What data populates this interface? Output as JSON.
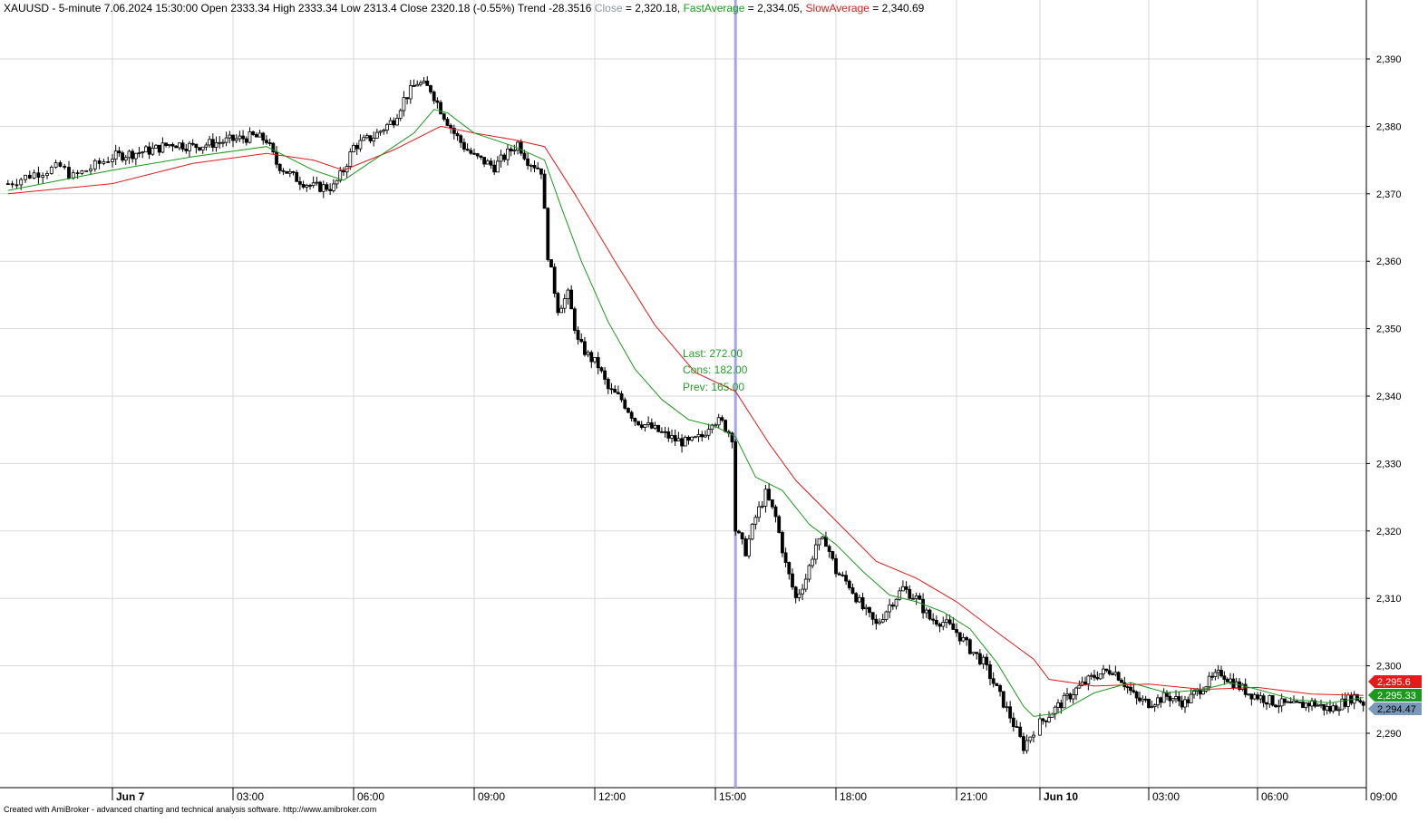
{
  "header": {
    "symbol": "XAUUSD",
    "interval": "5-minute",
    "datetime": "7.06.2024 15:30:00",
    "ohlc_text": "Open 2333.34 High 2333.34 Low 2313.4 Close 2320.18 (-0.55%) Trend -28.3516",
    "close_label": "Close",
    "close_value": " = 2,320.18, ",
    "fast_label": "FastAverage",
    "fast_value": " = 2,334.05, ",
    "slow_label": "SlowAverage",
    "slow_value": " = 2,340.69"
  },
  "info": {
    "last": "Last: 272.00",
    "cons": "Cons: 182.00",
    "prev": "Prev: 165.00"
  },
  "footer_text": "Created with AmiBroker - advanced charting and technical analysis software. http://www.amibroker.com",
  "colors": {
    "fast_average": "#1a9a1a",
    "slow_average": "#e31b1b",
    "cursor": "#a3a3f0",
    "close_badge": "#7a98b8",
    "grid": "#d9d9d9"
  },
  "chart_data": {
    "type": "candlestick",
    "symbol": "XAUUSD",
    "interval": "5-minute",
    "ylim": [
      2286,
      2397
    ],
    "y_ticks": [
      "2,290",
      "2,300",
      "2,310",
      "2,320",
      "2,330",
      "2,340",
      "2,350",
      "2,360",
      "2,370",
      "2,380",
      "2,390"
    ],
    "y_tick_values": [
      2290,
      2300,
      2310,
      2320,
      2330,
      2340,
      2350,
      2360,
      2370,
      2380,
      2390
    ],
    "x_ticks": [
      {
        "label": "Jun 7",
        "time": "Jun 7 00:00",
        "major": true
      },
      {
        "label": "03:00",
        "time": "Jun 7 03:00",
        "major": false
      },
      {
        "label": "06:00",
        "time": "Jun 7 06:00",
        "major": false
      },
      {
        "label": "09:00",
        "time": "Jun 7 09:00",
        "major": false
      },
      {
        "label": "12:00",
        "time": "Jun 7 12:00",
        "major": false
      },
      {
        "label": "15:00",
        "time": "Jun 7 15:00",
        "major": false
      },
      {
        "label": "18:00",
        "time": "Jun 7 18:00",
        "major": false
      },
      {
        "label": "21:00",
        "time": "Jun 7 21:00",
        "major": false
      },
      {
        "label": "Jun 10",
        "time": "Jun 10 00:00",
        "major": true
      },
      {
        "label": "03:00",
        "time": "Jun 10 03:00",
        "major": false
      },
      {
        "label": "06:00",
        "time": "Jun 10 06:00",
        "major": false
      },
      {
        "label": "09:00",
        "time": "Jun 10 09:00",
        "major": false
      }
    ],
    "x_start": "Jun 6 21:55",
    "x_end": "Jun 10 09:00",
    "cursor_time": "Jun 7 15:30",
    "close_path": [
      {
        "t": "Jun 6 22:00",
        "v": 2371.5
      },
      {
        "t": "Jun 6 22:30",
        "v": 2373.0
      },
      {
        "t": "Jun 6 23:00",
        "v": 2374.0
      },
      {
        "t": "Jun 6 23:15",
        "v": 2372.5
      },
      {
        "t": "Jun 7 00:00",
        "v": 2375.5
      },
      {
        "t": "Jun 7 00:30",
        "v": 2376.0
      },
      {
        "t": "Jun 7 01:00",
        "v": 2376.5
      },
      {
        "t": "Jun 7 01:30",
        "v": 2377.5
      },
      {
        "t": "Jun 7 02:00",
        "v": 2377.0
      },
      {
        "t": "Jun 7 02:30",
        "v": 2377.5
      },
      {
        "t": "Jun 7 03:00",
        "v": 2378.0
      },
      {
        "t": "Jun 7 03:30",
        "v": 2378.5
      },
      {
        "t": "Jun 7 03:50",
        "v": 2378.0
      },
      {
        "t": "Jun 7 04:05",
        "v": 2374.5
      },
      {
        "t": "Jun 7 04:30",
        "v": 2372.5
      },
      {
        "t": "Jun 7 05:00",
        "v": 2371.0
      },
      {
        "t": "Jun 7 05:30",
        "v": 2371.0
      },
      {
        "t": "Jun 7 05:45",
        "v": 2373.5
      },
      {
        "t": "Jun 7 06:00",
        "v": 2377.0
      },
      {
        "t": "Jun 7 06:30",
        "v": 2378.5
      },
      {
        "t": "Jun 7 07:00",
        "v": 2381.0
      },
      {
        "t": "Jun 7 07:15",
        "v": 2384.0
      },
      {
        "t": "Jun 7 07:35",
        "v": 2386.5
      },
      {
        "t": "Jun 7 07:55",
        "v": 2385.5
      },
      {
        "t": "Jun 7 08:10",
        "v": 2382.5
      },
      {
        "t": "Jun 7 08:30",
        "v": 2379.0
      },
      {
        "t": "Jun 7 08:45",
        "v": 2377.0
      },
      {
        "t": "Jun 7 09:00",
        "v": 2375.5
      },
      {
        "t": "Jun 7 09:30",
        "v": 2374.0
      },
      {
        "t": "Jun 7 09:50",
        "v": 2376.0
      },
      {
        "t": "Jun 7 10:05",
        "v": 2377.5
      },
      {
        "t": "Jun 7 10:20",
        "v": 2375.0
      },
      {
        "t": "Jun 7 10:40",
        "v": 2373.5
      },
      {
        "t": "Jun 7 10:50",
        "v": 2361.0
      },
      {
        "t": "Jun 7 11:05",
        "v": 2353.0
      },
      {
        "t": "Jun 7 11:20",
        "v": 2355.0
      },
      {
        "t": "Jun 7 11:35",
        "v": 2348.0
      },
      {
        "t": "Jun 7 11:50",
        "v": 2346.0
      },
      {
        "t": "Jun 7 12:05",
        "v": 2344.5
      },
      {
        "t": "Jun 7 12:20",
        "v": 2341.0
      },
      {
        "t": "Jun 7 12:40",
        "v": 2339.5
      },
      {
        "t": "Jun 7 13:00",
        "v": 2336.5
      },
      {
        "t": "Jun 7 13:20",
        "v": 2335.5
      },
      {
        "t": "Jun 7 13:40",
        "v": 2334.5
      },
      {
        "t": "Jun 7 14:00",
        "v": 2333.5
      },
      {
        "t": "Jun 7 14:20",
        "v": 2333.0
      },
      {
        "t": "Jun 7 14:40",
        "v": 2334.0
      },
      {
        "t": "Jun 7 14:55",
        "v": 2336.5
      },
      {
        "t": "Jun 7 15:10",
        "v": 2336.0
      },
      {
        "t": "Jun 7 15:25",
        "v": 2334.0
      },
      {
        "t": "Jun 7 15:30",
        "v": 2320.2
      },
      {
        "t": "Jun 7 15:45",
        "v": 2317.0
      },
      {
        "t": "Jun 7 16:00",
        "v": 2322.0
      },
      {
        "t": "Jun 7 16:15",
        "v": 2325.5
      },
      {
        "t": "Jun 7 16:30",
        "v": 2322.0
      },
      {
        "t": "Jun 7 16:45",
        "v": 2315.0
      },
      {
        "t": "Jun 7 17:00",
        "v": 2310.0
      },
      {
        "t": "Jun 7 17:15",
        "v": 2313.0
      },
      {
        "t": "Jun 7 17:30",
        "v": 2318.0
      },
      {
        "t": "Jun 7 17:45",
        "v": 2318.5
      },
      {
        "t": "Jun 7 18:00",
        "v": 2314.0
      },
      {
        "t": "Jun 7 18:20",
        "v": 2312.0
      },
      {
        "t": "Jun 7 18:40",
        "v": 2308.5
      },
      {
        "t": "Jun 7 19:00",
        "v": 2306.0
      },
      {
        "t": "Jun 7 19:20",
        "v": 2309.0
      },
      {
        "t": "Jun 7 19:40",
        "v": 2311.5
      },
      {
        "t": "Jun 7 20:00",
        "v": 2310.0
      },
      {
        "t": "Jun 7 20:20",
        "v": 2307.0
      },
      {
        "t": "Jun 7 20:40",
        "v": 2306.5
      },
      {
        "t": "Jun 7 21:00",
        "v": 2305.0
      },
      {
        "t": "Jun 7 21:20",
        "v": 2302.5
      },
      {
        "t": "Jun 7 21:40",
        "v": 2300.5
      },
      {
        "t": "Jun 7 22:00",
        "v": 2296.5
      },
      {
        "t": "Jun 7 22:20",
        "v": 2292.5
      },
      {
        "t": "Jun 7 22:40",
        "v": 2288.0
      },
      {
        "t": "Jun 7 22:55",
        "v": 2290.5
      },
      {
        "t": "Jun 10 00:00",
        "v": 2291.5
      },
      {
        "t": "Jun 10 00:30",
        "v": 2294.0
      },
      {
        "t": "Jun 10 01:00",
        "v": 2296.5
      },
      {
        "t": "Jun 10 01:30",
        "v": 2298.5
      },
      {
        "t": "Jun 10 02:00",
        "v": 2299.5
      },
      {
        "t": "Jun 10 02:15",
        "v": 2298.0
      },
      {
        "t": "Jun 10 02:40",
        "v": 2295.0
      },
      {
        "t": "Jun 10 03:00",
        "v": 2294.5
      },
      {
        "t": "Jun 10 03:30",
        "v": 2295.5
      },
      {
        "t": "Jun 10 04:00",
        "v": 2294.5
      },
      {
        "t": "Jun 10 04:30",
        "v": 2297.0
      },
      {
        "t": "Jun 10 05:00",
        "v": 2299.0
      },
      {
        "t": "Jun 10 05:20",
        "v": 2297.5
      },
      {
        "t": "Jun 10 05:45",
        "v": 2296.0
      },
      {
        "t": "Jun 10 06:00",
        "v": 2295.5
      },
      {
        "t": "Jun 10 06:30",
        "v": 2294.5
      },
      {
        "t": "Jun 10 07:00",
        "v": 2294.0
      },
      {
        "t": "Jun 10 07:30",
        "v": 2294.5
      },
      {
        "t": "Jun 10 08:00",
        "v": 2293.5
      },
      {
        "t": "Jun 10 08:20",
        "v": 2294.5
      },
      {
        "t": "Jun 10 08:40",
        "v": 2295.5
      },
      {
        "t": "Jun 10 08:55",
        "v": 2294.5
      }
    ],
    "fast_average": [
      {
        "t": "Jun 6 22:00",
        "v": 2370.5
      },
      {
        "t": "Jun 7 00:00",
        "v": 2373.5
      },
      {
        "t": "Jun 7 02:00",
        "v": 2375.5
      },
      {
        "t": "Jun 7 03:50",
        "v": 2377.0
      },
      {
        "t": "Jun 7 05:00",
        "v": 2373.5
      },
      {
        "t": "Jun 7 05:45",
        "v": 2372.0
      },
      {
        "t": "Jun 7 06:30",
        "v": 2375.0
      },
      {
        "t": "Jun 7 07:30",
        "v": 2379.0
      },
      {
        "t": "Jun 7 08:00",
        "v": 2382.5
      },
      {
        "t": "Jun 7 08:20",
        "v": 2382.0
      },
      {
        "t": "Jun 7 09:00",
        "v": 2379.0
      },
      {
        "t": "Jun 7 10:00",
        "v": 2377.0
      },
      {
        "t": "Jun 7 10:45",
        "v": 2375.0
      },
      {
        "t": "Jun 7 11:10",
        "v": 2368.0
      },
      {
        "t": "Jun 7 11:40",
        "v": 2360.0
      },
      {
        "t": "Jun 7 12:20",
        "v": 2351.0
      },
      {
        "t": "Jun 7 13:00",
        "v": 2344.0
      },
      {
        "t": "Jun 7 13:40",
        "v": 2339.5
      },
      {
        "t": "Jun 7 14:20",
        "v": 2336.5
      },
      {
        "t": "Jun 7 15:00",
        "v": 2335.5
      },
      {
        "t": "Jun 7 15:30",
        "v": 2334.0
      },
      {
        "t": "Jun 7 16:00",
        "v": 2328.0
      },
      {
        "t": "Jun 7 16:40",
        "v": 2326.0
      },
      {
        "t": "Jun 7 17:20",
        "v": 2321.0
      },
      {
        "t": "Jun 7 18:00",
        "v": 2318.0
      },
      {
        "t": "Jun 7 18:40",
        "v": 2314.0
      },
      {
        "t": "Jun 7 19:20",
        "v": 2310.5
      },
      {
        "t": "Jun 7 20:00",
        "v": 2309.5
      },
      {
        "t": "Jun 7 20:40",
        "v": 2308.0
      },
      {
        "t": "Jun 7 21:20",
        "v": 2305.5
      },
      {
        "t": "Jun 7 22:00",
        "v": 2300.5
      },
      {
        "t": "Jun 7 22:40",
        "v": 2294.0
      },
      {
        "t": "Jun 7 22:55",
        "v": 2292.5
      },
      {
        "t": "Jun 10 00:30",
        "v": 2293.0
      },
      {
        "t": "Jun 10 01:30",
        "v": 2296.0
      },
      {
        "t": "Jun 10 02:30",
        "v": 2297.5
      },
      {
        "t": "Jun 10 03:30",
        "v": 2296.0
      },
      {
        "t": "Jun 10 04:30",
        "v": 2296.5
      },
      {
        "t": "Jun 10 05:15",
        "v": 2297.5
      },
      {
        "t": "Jun 10 06:00",
        "v": 2296.5
      },
      {
        "t": "Jun 10 07:00",
        "v": 2295.0
      },
      {
        "t": "Jun 10 08:00",
        "v": 2294.5
      },
      {
        "t": "Jun 10 08:55",
        "v": 2295.3
      }
    ],
    "slow_average": [
      {
        "t": "Jun 6 22:00",
        "v": 2370.0
      },
      {
        "t": "Jun 7 00:00",
        "v": 2371.5
      },
      {
        "t": "Jun 7 02:00",
        "v": 2374.5
      },
      {
        "t": "Jun 7 03:50",
        "v": 2376.0
      },
      {
        "t": "Jun 7 05:00",
        "v": 2375.0
      },
      {
        "t": "Jun 7 05:45",
        "v": 2373.5
      },
      {
        "t": "Jun 7 07:00",
        "v": 2376.5
      },
      {
        "t": "Jun 7 08:10",
        "v": 2380.0
      },
      {
        "t": "Jun 7 09:00",
        "v": 2379.0
      },
      {
        "t": "Jun 7 10:00",
        "v": 2378.0
      },
      {
        "t": "Jun 7 10:45",
        "v": 2377.0
      },
      {
        "t": "Jun 7 11:30",
        "v": 2370.0
      },
      {
        "t": "Jun 7 12:30",
        "v": 2360.0
      },
      {
        "t": "Jun 7 13:30",
        "v": 2350.5
      },
      {
        "t": "Jun 7 14:30",
        "v": 2343.5
      },
      {
        "t": "Jun 7 15:30",
        "v": 2340.7
      },
      {
        "t": "Jun 7 16:20",
        "v": 2333.0
      },
      {
        "t": "Jun 7 17:00",
        "v": 2327.5
      },
      {
        "t": "Jun 7 18:00",
        "v": 2321.5
      },
      {
        "t": "Jun 7 19:00",
        "v": 2315.5
      },
      {
        "t": "Jun 7 20:00",
        "v": 2313.0
      },
      {
        "t": "Jun 7 21:00",
        "v": 2309.5
      },
      {
        "t": "Jun 7 22:00",
        "v": 2305.0
      },
      {
        "t": "Jun 7 22:55",
        "v": 2301.0
      },
      {
        "t": "Jun 10 00:15",
        "v": 2298.0
      },
      {
        "t": "Jun 10 01:30",
        "v": 2297.0
      },
      {
        "t": "Jun 10 03:00",
        "v": 2297.3
      },
      {
        "t": "Jun 10 04:30",
        "v": 2296.5
      },
      {
        "t": "Jun 10 06:00",
        "v": 2296.8
      },
      {
        "t": "Jun 10 07:30",
        "v": 2295.8
      },
      {
        "t": "Jun 10 08:55",
        "v": 2295.6
      }
    ],
    "value_badges": [
      {
        "label": "2,295.6",
        "value": 2295.6,
        "color": "#e31b1b",
        "text_color": "#ffffff"
      },
      {
        "label": "2,295.33",
        "value": 2295.33,
        "color": "#1a9a1a",
        "text_color": "#ffffff"
      },
      {
        "label": "2,294.47",
        "value": 2294.47,
        "color": "#7a98b8",
        "text_color": "#000000"
      }
    ]
  }
}
